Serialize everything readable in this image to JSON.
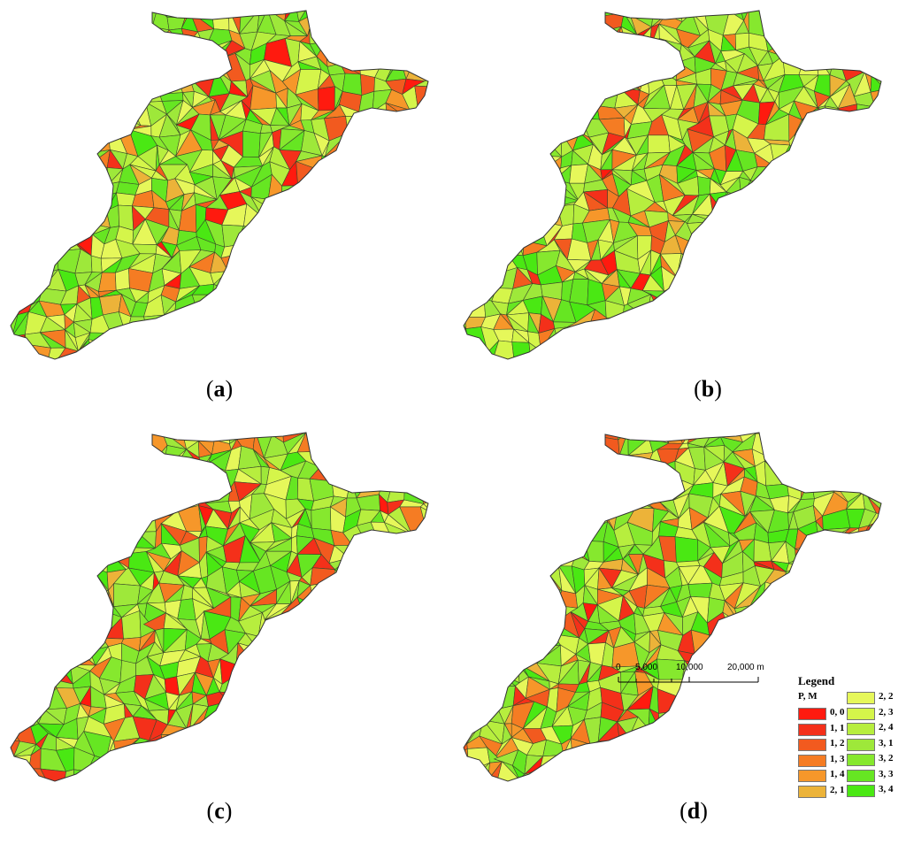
{
  "panels": [
    {
      "id": "a",
      "label_open": "(",
      "letter": "a",
      "label_close": ")"
    },
    {
      "id": "b",
      "label_open": "(",
      "letter": "b",
      "label_close": ")"
    },
    {
      "id": "c",
      "label_open": "(",
      "letter": "c",
      "label_close": ")"
    },
    {
      "id": "d",
      "label_open": "(",
      "letter": "d",
      "label_close": ")"
    }
  ],
  "legend": {
    "title": "Legend",
    "subtitle": "P, M",
    "classes": [
      {
        "label": "0, 0",
        "color": "#ff1a0f"
      },
      {
        "label": "1, 1",
        "color": "#f4301a"
      },
      {
        "label": "1, 2",
        "color": "#f25a1f"
      },
      {
        "label": "1, 3",
        "color": "#f57c23"
      },
      {
        "label": "1, 4",
        "color": "#f6972a"
      },
      {
        "label": "2, 1",
        "color": "#ecb339"
      },
      {
        "label": "2, 2",
        "color": "#e6f75a"
      },
      {
        "label": "2, 3",
        "color": "#d5f54a"
      },
      {
        "label": "2, 4",
        "color": "#b7ee3e"
      },
      {
        "label": "3, 1",
        "color": "#9ee83a"
      },
      {
        "label": "3, 2",
        "color": "#86e82e"
      },
      {
        "label": "3, 3",
        "color": "#66e622"
      },
      {
        "label": "3, 4",
        "color": "#4ae813"
      }
    ]
  },
  "scalebar": {
    "labels": [
      "0",
      "5,000",
      "10,000",
      "20,000 m"
    ]
  }
}
